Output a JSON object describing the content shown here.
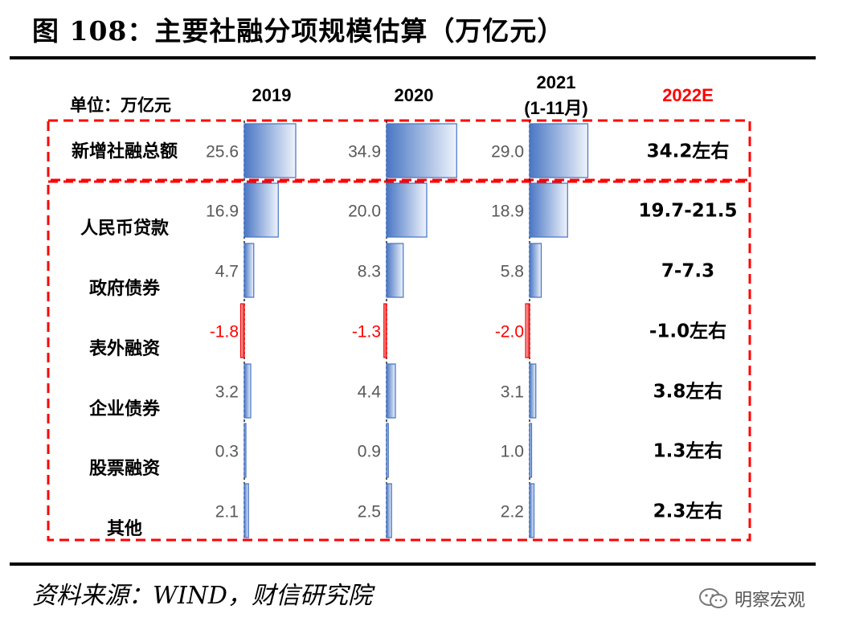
{
  "title": "图 108：主要社融分项规模估算（万亿元）",
  "source": "资料来源：WIND，财信研究院",
  "watermark": "明察宏观",
  "watermark_icon": "wechat-icon",
  "chart_data": {
    "type": "bar",
    "orientation": "horizontal",
    "unit_label": "单位：万亿元",
    "years": [
      "2019",
      "2020",
      "2021"
    ],
    "year_sublabels": [
      "",
      "",
      "(1-11月)"
    ],
    "estimate_header": "2022E",
    "estimate_header_color": "#ff0000",
    "frame_color": "#ff0000",
    "bar_color": "#4472c4",
    "negative_bar_color": "#ff0000",
    "categories": [
      "新增社融总额",
      "人民币贷款",
      "政府债券",
      "表外融资",
      "企业债券",
      "股票融资",
      "其他"
    ],
    "series": [
      {
        "name": "2019",
        "values": [
          25.6,
          16.9,
          4.7,
          -1.8,
          3.2,
          0.3,
          2.1
        ]
      },
      {
        "name": "2020",
        "values": [
          34.9,
          20.0,
          8.3,
          -1.3,
          4.4,
          0.9,
          2.5
        ]
      },
      {
        "name": "2021",
        "values": [
          29.0,
          18.9,
          5.8,
          -2.0,
          3.1,
          1.0,
          2.2
        ]
      }
    ],
    "estimates": [
      "34.2左右",
      "19.7-21.5",
      "7-7.3",
      "-1.0左右",
      "3.8左右",
      "1.3左右",
      "2.3左右"
    ]
  }
}
